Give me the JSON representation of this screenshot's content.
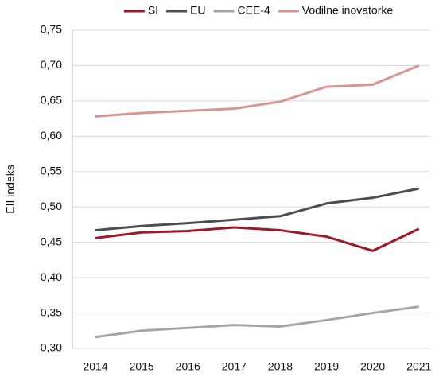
{
  "chart_data": {
    "type": "line",
    "y_label": "EII indeks",
    "categories": [
      "2014",
      "2015",
      "2016",
      "2017",
      "2018",
      "2019",
      "2020",
      "2021"
    ],
    "series": [
      {
        "name": "SI",
        "color": "#a0162a",
        "values": [
          0.456,
          0.464,
          0.466,
          0.471,
          0.467,
          0.458,
          0.438,
          0.469
        ]
      },
      {
        "name": "EU",
        "color": "#4d4d4d",
        "values": [
          0.467,
          0.473,
          0.477,
          0.482,
          0.487,
          0.505,
          0.513,
          0.526
        ]
      },
      {
        "name": "CEE-4",
        "color": "#a6a6a6",
        "values": [
          0.316,
          0.325,
          0.329,
          0.333,
          0.331,
          0.34,
          0.35,
          0.359
        ]
      },
      {
        "name": "Vodilne inovatorke",
        "color": "#d99594",
        "values": [
          0.628,
          0.633,
          0.636,
          0.639,
          0.649,
          0.67,
          0.673,
          0.7
        ]
      }
    ],
    "ylim": [
      0.3,
      0.75
    ],
    "yticks": [
      {
        "value": 0.3,
        "label": "0,30"
      },
      {
        "value": 0.35,
        "label": "0,35"
      },
      {
        "value": 0.4,
        "label": "0,40"
      },
      {
        "value": 0.45,
        "label": "0,45"
      },
      {
        "value": 0.5,
        "label": "0,50"
      },
      {
        "value": 0.55,
        "label": "0,55"
      },
      {
        "value": 0.6,
        "label": "0,60"
      },
      {
        "value": 0.65,
        "label": "0,65"
      },
      {
        "value": 0.7,
        "label": "0,70"
      },
      {
        "value": 0.75,
        "label": "0,75"
      }
    ],
    "grid": true,
    "legend": "top"
  }
}
